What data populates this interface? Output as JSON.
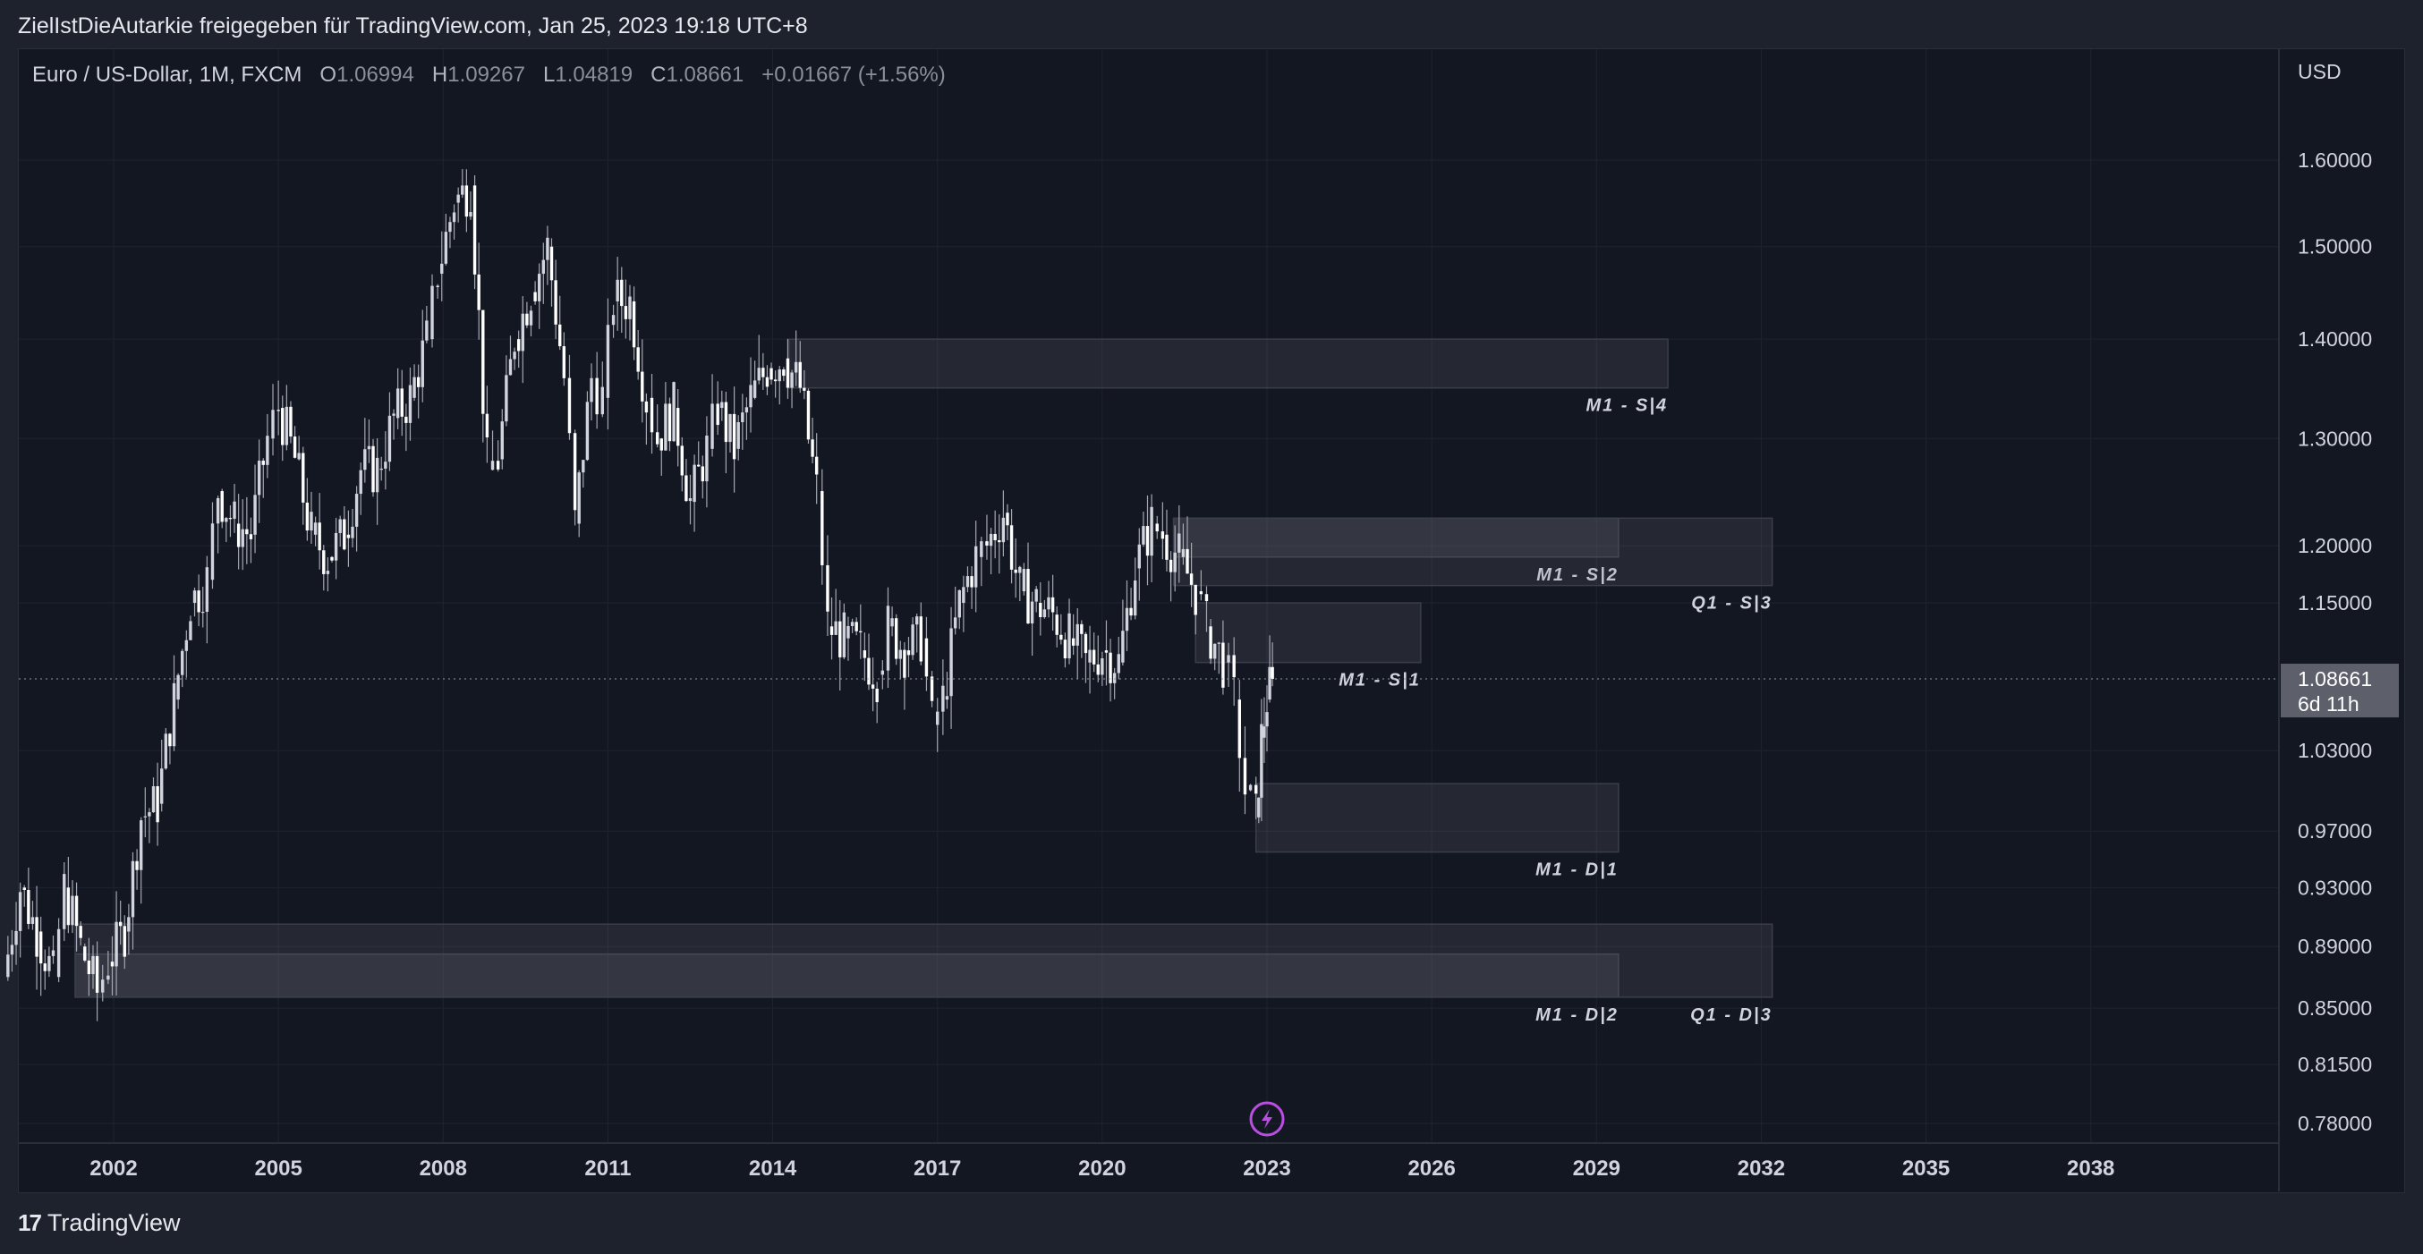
{
  "header": {
    "attribution": "ZielIstDieAutarkie freigegeben für TradingView.com, Jan 25, 2023 19:18 UTC+8"
  },
  "legend": {
    "symbol": "Euro / US-Dollar, 1M, FXCM",
    "open_key": "O",
    "open": "1.06994",
    "high_key": "H",
    "high": "1.09267",
    "low_key": "L",
    "low": "1.04819",
    "close_key": "C",
    "close": "1.08661",
    "change": "+0.01667 (+1.56%)"
  },
  "footer": {
    "brand": "TradingView",
    "brand_mark": "17"
  },
  "chart_data": {
    "type": "candlestick",
    "currency": "USD",
    "x_ticks": [
      "2002",
      "2005",
      "2008",
      "2011",
      "2014",
      "2017",
      "2020",
      "2023",
      "2026",
      "2029",
      "2032",
      "2035",
      "2038"
    ],
    "y_ticks": [
      "1.60000",
      "1.50000",
      "1.40000",
      "1.30000",
      "1.20000",
      "1.15000",
      "1.03000",
      "0.97000",
      "0.93000",
      "0.89000",
      "0.85000",
      "0.81500",
      "0.78000"
    ],
    "x_range": [
      2000.0,
      2041.0
    ],
    "y_range": [
      0.765,
      1.7
    ],
    "last_price": "1.08661",
    "countdown": "6d 11h",
    "price_path": [
      [
        2000.0,
        0.87
      ],
      [
        2000.3,
        0.93
      ],
      [
        2000.6,
        0.9
      ],
      [
        2000.9,
        0.87
      ],
      [
        2001.1,
        0.93
      ],
      [
        2001.4,
        0.89
      ],
      [
        2001.7,
        0.86
      ],
      [
        2001.9,
        0.88
      ],
      [
        2002.2,
        0.9
      ],
      [
        2002.5,
        0.98
      ],
      [
        2002.8,
        0.99
      ],
      [
        2003.1,
        1.07
      ],
      [
        2003.4,
        1.15
      ],
      [
        2003.7,
        1.17
      ],
      [
        2003.9,
        1.25
      ],
      [
        2004.2,
        1.22
      ],
      [
        2004.5,
        1.21
      ],
      [
        2004.8,
        1.3
      ],
      [
        2005.0,
        1.33
      ],
      [
        2005.3,
        1.28
      ],
      [
        2005.6,
        1.21
      ],
      [
        2005.9,
        1.19
      ],
      [
        2006.2,
        1.21
      ],
      [
        2006.5,
        1.27
      ],
      [
        2006.8,
        1.27
      ],
      [
        2007.1,
        1.32
      ],
      [
        2007.4,
        1.34
      ],
      [
        2007.7,
        1.4
      ],
      [
        2007.9,
        1.47
      ],
      [
        2008.2,
        1.55
      ],
      [
        2008.5,
        1.57
      ],
      [
        2008.8,
        1.27
      ],
      [
        2009.0,
        1.28
      ],
      [
        2009.3,
        1.4
      ],
      [
        2009.6,
        1.45
      ],
      [
        2009.9,
        1.5
      ],
      [
        2010.2,
        1.36
      ],
      [
        2010.4,
        1.22
      ],
      [
        2010.7,
        1.36
      ],
      [
        2010.9,
        1.34
      ],
      [
        2011.1,
        1.44
      ],
      [
        2011.4,
        1.44
      ],
      [
        2011.7,
        1.34
      ],
      [
        2011.9,
        1.3
      ],
      [
        2012.2,
        1.33
      ],
      [
        2012.5,
        1.24
      ],
      [
        2012.8,
        1.29
      ],
      [
        2013.0,
        1.33
      ],
      [
        2013.3,
        1.29
      ],
      [
        2013.6,
        1.34
      ],
      [
        2013.9,
        1.37
      ],
      [
        2014.2,
        1.38
      ],
      [
        2014.5,
        1.35
      ],
      [
        2014.8,
        1.25
      ],
      [
        2015.0,
        1.13
      ],
      [
        2015.3,
        1.12
      ],
      [
        2015.6,
        1.11
      ],
      [
        2015.9,
        1.09
      ],
      [
        2016.1,
        1.13
      ],
      [
        2016.4,
        1.11
      ],
      [
        2016.7,
        1.12
      ],
      [
        2016.9,
        1.05
      ],
      [
        2017.1,
        1.07
      ],
      [
        2017.4,
        1.15
      ],
      [
        2017.7,
        1.19
      ],
      [
        2017.9,
        1.2
      ],
      [
        2018.2,
        1.23
      ],
      [
        2018.5,
        1.16
      ],
      [
        2018.8,
        1.15
      ],
      [
        2019.1,
        1.14
      ],
      [
        2019.4,
        1.12
      ],
      [
        2019.7,
        1.1
      ],
      [
        2020.0,
        1.11
      ],
      [
        2020.3,
        1.1
      ],
      [
        2020.6,
        1.18
      ],
      [
        2020.9,
        1.22
      ],
      [
        2021.1,
        1.21
      ],
      [
        2021.4,
        1.19
      ],
      [
        2021.7,
        1.16
      ],
      [
        2021.9,
        1.13
      ],
      [
        2022.2,
        1.1
      ],
      [
        2022.4,
        1.07
      ],
      [
        2022.6,
        1.0
      ],
      [
        2022.8,
        0.98
      ],
      [
        2022.9,
        1.04
      ],
      [
        2023.0,
        1.07
      ],
      [
        2023.1,
        1.08661
      ]
    ],
    "zones": [
      {
        "label": "M1 - S|4",
        "x0": 2014.3,
        "x1": 2030.3,
        "y_top": 1.4,
        "y_bot": 1.35
      },
      {
        "label": "M1 - S|2",
        "x0": 2021.3,
        "x1": 2029.4,
        "y_top": 1.225,
        "y_bot": 1.19
      },
      {
        "label": "Q1 - S|3",
        "x0": 2021.3,
        "x1": 2032.2,
        "y_top": 1.225,
        "y_bot": 1.165
      },
      {
        "label": "M1 - S|1",
        "x0": 2021.7,
        "x1": 2025.8,
        "y_top": 1.15,
        "y_bot": 1.1
      },
      {
        "label": "M1 - D|1",
        "x0": 2022.8,
        "x1": 2029.4,
        "y_top": 1.005,
        "y_bot": 0.955
      },
      {
        "label": "M1 - D|2",
        "x0": 2001.3,
        "x1": 2029.4,
        "y_top": 0.885,
        "y_bot": 0.857
      },
      {
        "label": "Q1 - D|3",
        "x0": 2001.3,
        "x1": 2032.2,
        "y_top": 0.905,
        "y_bot": 0.857
      }
    ]
  },
  "colors": {
    "background": "#131722",
    "frame": "#1e222d",
    "candle": "#d1d4dc",
    "zone_fill": "rgba(120,123,134,0.18)",
    "zone_border": "#3a3e4a",
    "grid": "#1f2330",
    "price_label_bg": "#5d606b",
    "lightning": "#b94ee0"
  },
  "icons": {
    "event_marker": "lightning-icon",
    "brand": "tradingview-logo-icon"
  }
}
